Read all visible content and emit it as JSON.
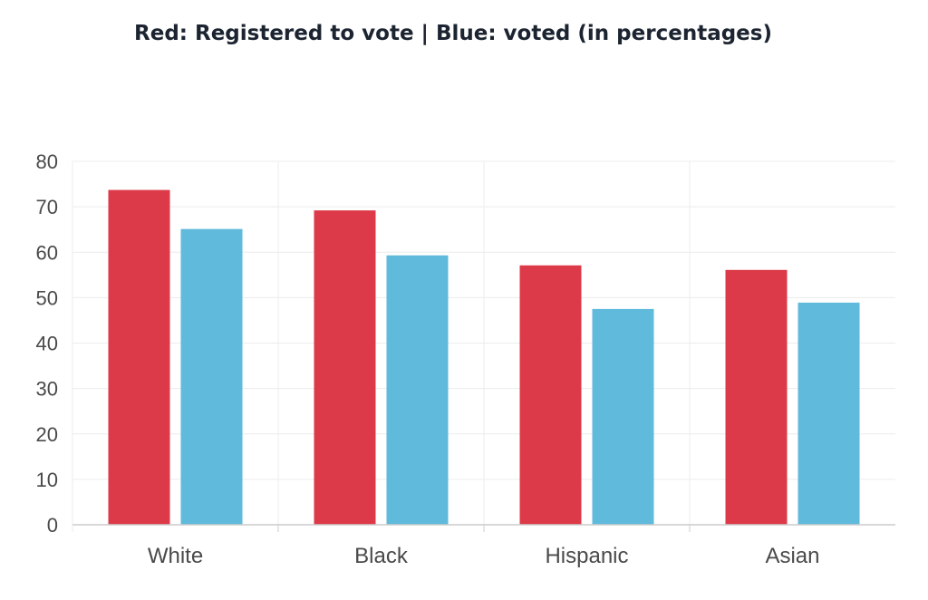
{
  "title": "Red: Registered to vote  |  Blue: voted (in percentages)",
  "colors": {
    "registered": "#dc3a48",
    "voted": "#5fbadb",
    "grid": "#ececec",
    "axis": "#cccccc"
  },
  "chart_data": {
    "type": "bar",
    "title": "Red: Registered to vote  |  Blue: voted (in percentages)",
    "categories": [
      "White",
      "Black",
      "Hispanic",
      "Asian"
    ],
    "series": [
      {
        "color": "red",
        "values": [
          73.7,
          69.2,
          57.1,
          56.1
        ]
      },
      {
        "color": "blue",
        "values": [
          65.1,
          59.3,
          47.5,
          48.9
        ]
      }
    ],
    "ylim": [
      0,
      80
    ],
    "yticks": [
      0,
      10,
      20,
      30,
      40,
      50,
      60,
      70,
      80
    ],
    "grid": true,
    "legend": "none"
  }
}
